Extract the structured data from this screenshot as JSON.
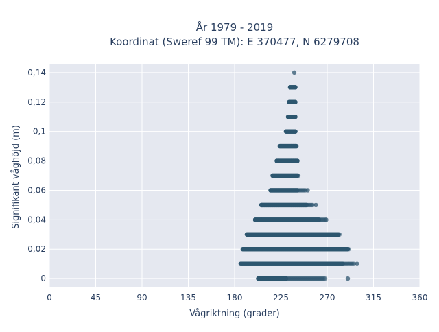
{
  "chart_data": {
    "type": "scatter",
    "title_line1": "År 1979 - 2019",
    "title_line2": "Koordinat (Sweref 99 TM): E 370477, N 6279708",
    "xlabel": "Vågriktning (grader)",
    "ylabel": "Signifikant våghöjd (m)",
    "xlim": [
      0,
      360
    ],
    "ylim": [
      -0.006,
      0.146
    ],
    "xticks": [
      0,
      45,
      90,
      135,
      180,
      225,
      270,
      315,
      360
    ],
    "xtick_labels": [
      "0",
      "45",
      "90",
      "135",
      "180",
      "225",
      "270",
      "315",
      "360"
    ],
    "yticks": [
      0,
      0.02,
      0.04,
      0.06,
      0.08,
      0.1,
      0.12,
      0.14
    ],
    "ytick_labels": [
      "0",
      "0,02",
      "0,04",
      "0,06",
      "0,08",
      "0,1",
      "0,12",
      "0,14"
    ],
    "grid": true,
    "marker_color": "#2e566f",
    "bands": [
      {
        "y": 0.0,
        "x_min": 203,
        "x_max": 268,
        "dense_max": 230
      },
      {
        "y": 0.01,
        "x_min": 186,
        "x_max": 296,
        "dense_max": 285
      },
      {
        "y": 0.02,
        "x_min": 188,
        "x_max": 291,
        "dense_max": 290
      },
      {
        "y": 0.03,
        "x_min": 192,
        "x_max": 282,
        "dense_max": 281
      },
      {
        "y": 0.04,
        "x_min": 200,
        "x_max": 268,
        "dense_max": 262
      },
      {
        "y": 0.05,
        "x_min": 206,
        "x_max": 256,
        "dense_max": 250
      },
      {
        "y": 0.06,
        "x_min": 215,
        "x_max": 249,
        "dense_max": 241
      },
      {
        "y": 0.07,
        "x_min": 217,
        "x_max": 242,
        "dense_max": 241
      },
      {
        "y": 0.08,
        "x_min": 221,
        "x_max": 241,
        "dense_max": 241
      },
      {
        "y": 0.09,
        "x_min": 224,
        "x_max": 240,
        "dense_max": 240
      },
      {
        "y": 0.1,
        "x_min": 230,
        "x_max": 239,
        "dense_max": 239
      },
      {
        "y": 0.11,
        "x_min": 232,
        "x_max": 239,
        "dense_max": 239
      },
      {
        "y": 0.12,
        "x_min": 233,
        "x_max": 239,
        "dense_max": 239
      },
      {
        "y": 0.13,
        "x_min": 234,
        "x_max": 239,
        "dense_max": 239
      }
    ],
    "outliers": [
      {
        "x": 238,
        "y": 0.14
      },
      {
        "x": 290,
        "y": 0.0
      },
      {
        "x": 299,
        "y": 0.01
      },
      {
        "x": 269,
        "y": 0.04
      },
      {
        "x": 259,
        "y": 0.05
      },
      {
        "x": 251,
        "y": 0.06
      }
    ]
  }
}
